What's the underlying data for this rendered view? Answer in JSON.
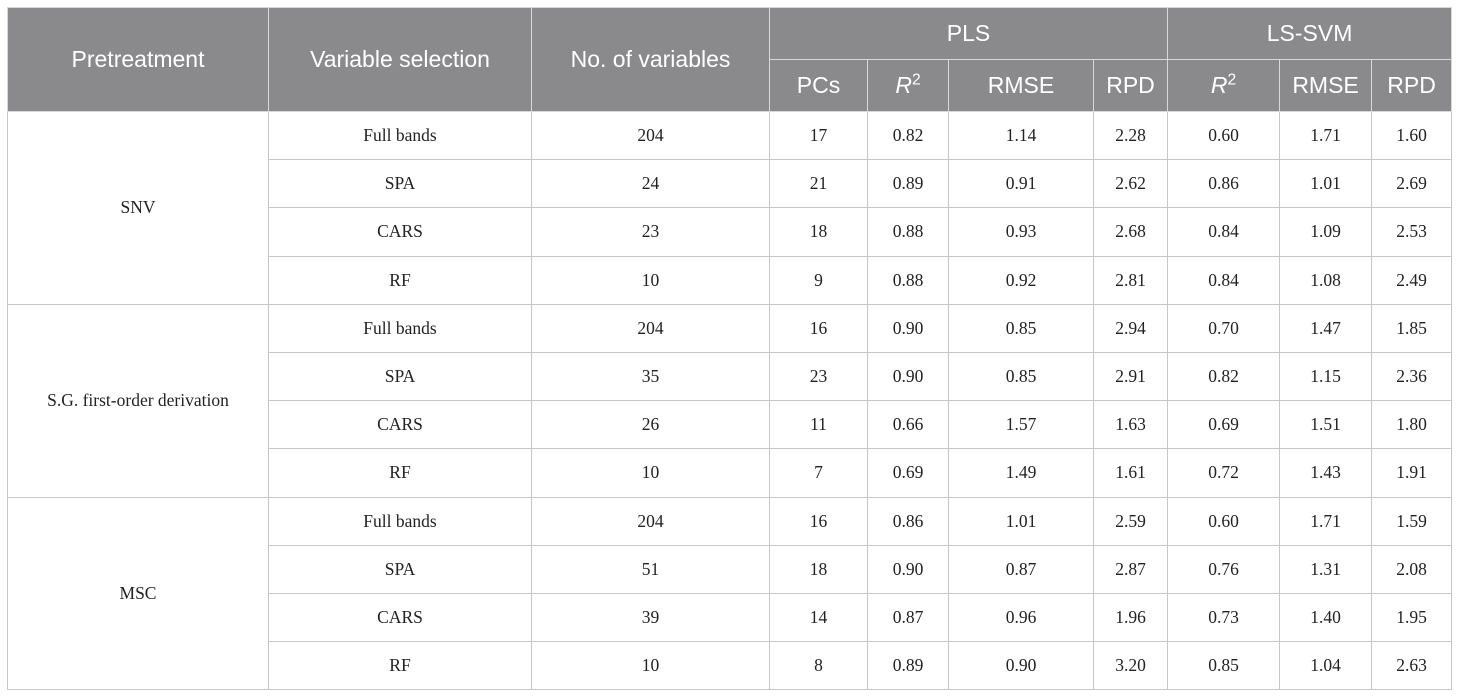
{
  "table": {
    "headers": {
      "pretreatment": "Pretreatment",
      "variable_selection": "Variable selection",
      "no_of_variables": "No. of variables",
      "pls": "PLS",
      "lssvm": "LS-SVM",
      "pcs": "PCs",
      "r2_base": "R",
      "r2_sup": "2",
      "rmse": "RMSE",
      "rpd": "RPD"
    },
    "groups": [
      {
        "pretreatment": "SNV",
        "rows": [
          {
            "selection": "Full bands",
            "n": "204",
            "pcs": "17",
            "pls_r2": "0.82",
            "pls_rmse": "1.14",
            "pls_rpd": "2.28",
            "svm_r2": "0.60",
            "svm_rmse": "1.71",
            "svm_rpd": "1.60"
          },
          {
            "selection": "SPA",
            "n": "24",
            "pcs": "21",
            "pls_r2": "0.89",
            "pls_rmse": "0.91",
            "pls_rpd": "2.62",
            "svm_r2": "0.86",
            "svm_rmse": "1.01",
            "svm_rpd": "2.69"
          },
          {
            "selection": "CARS",
            "n": "23",
            "pcs": "18",
            "pls_r2": "0.88",
            "pls_rmse": "0.93",
            "pls_rpd": "2.68",
            "svm_r2": "0.84",
            "svm_rmse": "1.09",
            "svm_rpd": "2.53"
          },
          {
            "selection": "RF",
            "n": "10",
            "pcs": "9",
            "pls_r2": "0.88",
            "pls_rmse": "0.92",
            "pls_rpd": "2.81",
            "svm_r2": "0.84",
            "svm_rmse": "1.08",
            "svm_rpd": "2.49"
          }
        ]
      },
      {
        "pretreatment": "S.G. first-order derivation",
        "rows": [
          {
            "selection": "Full bands",
            "n": "204",
            "pcs": "16",
            "pls_r2": "0.90",
            "pls_rmse": "0.85",
            "pls_rpd": "2.94",
            "svm_r2": "0.70",
            "svm_rmse": "1.47",
            "svm_rpd": "1.85"
          },
          {
            "selection": "SPA",
            "n": "35",
            "pcs": "23",
            "pls_r2": "0.90",
            "pls_rmse": "0.85",
            "pls_rpd": "2.91",
            "svm_r2": "0.82",
            "svm_rmse": "1.15",
            "svm_rpd": "2.36"
          },
          {
            "selection": "CARS",
            "n": "26",
            "pcs": "11",
            "pls_r2": "0.66",
            "pls_rmse": "1.57",
            "pls_rpd": "1.63",
            "svm_r2": "0.69",
            "svm_rmse": "1.51",
            "svm_rpd": "1.80"
          },
          {
            "selection": "RF",
            "n": "10",
            "pcs": "7",
            "pls_r2": "0.69",
            "pls_rmse": "1.49",
            "pls_rpd": "1.61",
            "svm_r2": "0.72",
            "svm_rmse": "1.43",
            "svm_rpd": "1.91"
          }
        ]
      },
      {
        "pretreatment": "MSC",
        "rows": [
          {
            "selection": "Full bands",
            "n": "204",
            "pcs": "16",
            "pls_r2": "0.86",
            "pls_rmse": "1.01",
            "pls_rpd": "2.59",
            "svm_r2": "0.60",
            "svm_rmse": "1.71",
            "svm_rpd": "1.59"
          },
          {
            "selection": "SPA",
            "n": "51",
            "pcs": "18",
            "pls_r2": "0.90",
            "pls_rmse": "0.87",
            "pls_rpd": "2.87",
            "svm_r2": "0.76",
            "svm_rmse": "1.31",
            "svm_rpd": "2.08"
          },
          {
            "selection": "CARS",
            "n": "39",
            "pcs": "14",
            "pls_r2": "0.87",
            "pls_rmse": "0.96",
            "pls_rpd": "1.96",
            "svm_r2": "0.73",
            "svm_rmse": "1.40",
            "svm_rpd": "1.95"
          },
          {
            "selection": "RF",
            "n": "10",
            "pcs": "8",
            "pls_r2": "0.89",
            "pls_rmse": "0.90",
            "pls_rpd": "3.20",
            "svm_r2": "0.85",
            "svm_rmse": "1.04",
            "svm_rpd": "2.63"
          }
        ]
      }
    ]
  },
  "colors": {
    "header_bg": "#8a8a8c",
    "header_text": "#ffffff",
    "border": "#c6c6c6"
  }
}
